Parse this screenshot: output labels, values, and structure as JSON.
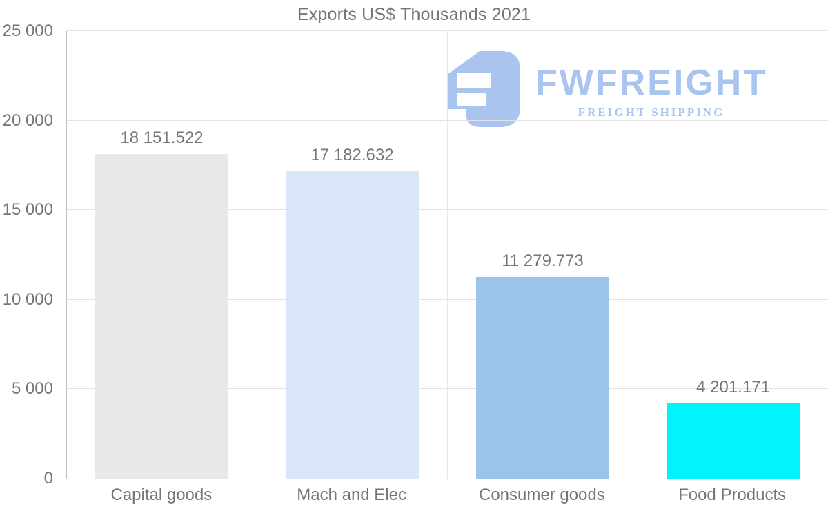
{
  "title": "Exports US$ Thousands 2021",
  "watermark": {
    "brand": "FWFREIGHT",
    "tagline": "FREIGHT SHIPPING",
    "color": "#a9c4ef"
  },
  "chart_data": {
    "type": "bar",
    "title": "Exports US$ Thousands 2021",
    "categories": [
      "Capital goods",
      "Mach and Elec",
      "Consumer goods",
      "Food Products"
    ],
    "values": [
      18151.522,
      17182.632,
      11279.773,
      4201.171
    ],
    "value_labels": [
      "18 151.522",
      "17 182.632",
      "11 279.773",
      "4 201.171"
    ],
    "bar_colors": [
      "#e8e8e8",
      "#d9e7f8",
      "#9cc3e9",
      "#00f4f9"
    ],
    "xlabel": "",
    "ylabel": "",
    "ylim": [
      0,
      25000
    ],
    "yticks": [
      0,
      5000,
      10000,
      15000,
      20000,
      25000
    ],
    "ytick_labels": [
      "0",
      "5 000",
      "10 000",
      "15 000",
      "20 000",
      "25 000"
    ],
    "grid": "horizontal gridlines at each y tick plus vertical category separators",
    "legend": "none",
    "label_color": "#757575"
  }
}
